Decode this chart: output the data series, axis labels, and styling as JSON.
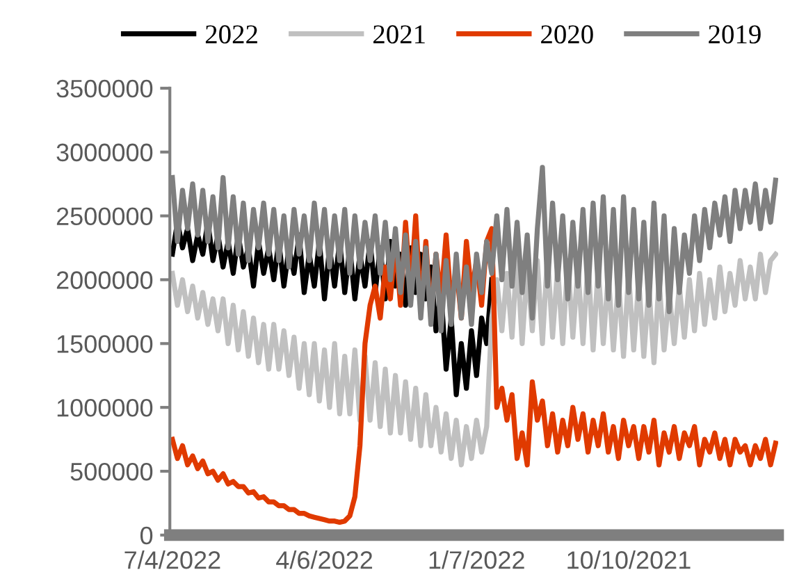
{
  "chart_data": {
    "type": "line",
    "legend": "top",
    "grid": false,
    "marker": "none",
    "line_style": "solid",
    "categories": [
      "7/4/2022",
      null,
      null,
      null,
      null,
      null,
      null,
      null,
      null,
      null,
      null,
      null,
      null,
      null,
      null,
      null,
      null,
      null,
      null,
      null,
      null,
      null,
      null,
      null,
      null,
      null,
      null,
      null,
      null,
      null,
      "4/6/2022",
      null,
      null,
      null,
      null,
      null,
      null,
      null,
      null,
      null,
      null,
      null,
      null,
      null,
      null,
      null,
      null,
      null,
      null,
      null,
      null,
      null,
      null,
      null,
      null,
      null,
      null,
      null,
      null,
      null,
      "1/7/2022",
      null,
      null,
      null,
      null,
      null,
      null,
      null,
      null,
      null,
      null,
      null,
      null,
      null,
      null,
      null,
      null,
      null,
      null,
      null,
      null,
      null,
      null,
      null,
      null,
      null,
      null,
      null,
      null,
      null,
      "10/10/2021",
      null,
      null,
      null,
      null,
      null,
      null,
      null,
      null,
      null,
      null,
      null,
      null,
      null,
      null,
      null,
      null,
      null,
      null,
      null,
      null,
      null,
      null,
      null,
      null,
      null,
      null,
      null,
      null,
      null
    ],
    "ylim": [
      0,
      3500000
    ],
    "yticks": [
      0,
      500000,
      1000000,
      1500000,
      2000000,
      2500000,
      3000000,
      3500000
    ],
    "series": [
      {
        "name": "2022",
        "color": "#000000",
        "values": [
          2200000,
          2450000,
          2250000,
          2400000,
          2150000,
          2350000,
          2200000,
          2450000,
          2150000,
          2350000,
          2100000,
          2300000,
          2050000,
          2350000,
          2100000,
          2250000,
          1950000,
          2300000,
          2050000,
          2250000,
          2000000,
          2300000,
          1950000,
          2250000,
          2050000,
          2350000,
          1900000,
          2200000,
          1950000,
          2300000,
          1850000,
          2250000,
          1950000,
          2300000,
          1900000,
          2250000,
          1850000,
          2200000,
          1950000,
          2300000,
          1900000,
          2250000,
          1850000,
          2300000,
          1950000,
          2200000,
          1800000,
          2250000,
          1900000,
          2200000,
          1850000,
          2100000,
          1600000,
          1900000,
          1300000,
          1700000,
          1100000,
          1500000,
          1150000,
          1600000,
          1250000,
          1700000,
          1500000,
          2000000,
          null,
          null,
          null,
          null,
          null,
          null,
          null,
          null,
          null,
          null,
          null,
          null,
          null,
          null,
          null,
          null,
          null,
          null,
          null,
          null,
          null,
          null,
          null,
          null,
          null,
          null,
          null,
          null,
          null,
          null,
          null,
          null,
          null,
          null,
          null,
          null,
          null,
          null,
          null,
          null,
          null,
          null,
          null,
          null,
          null,
          null,
          null,
          null,
          null,
          null,
          null,
          null,
          null,
          null,
          null,
          null
        ]
      },
      {
        "name": "2021",
        "color": "#c0c0c0",
        "values": [
          2050000,
          1800000,
          2000000,
          1750000,
          1950000,
          1700000,
          1900000,
          1650000,
          1850000,
          1600000,
          1850000,
          1500000,
          1800000,
          1450000,
          1750000,
          1400000,
          1700000,
          1350000,
          1650000,
          1300000,
          1650000,
          1300000,
          1600000,
          1250000,
          1550000,
          1150000,
          1500000,
          1100000,
          1500000,
          1050000,
          1450000,
          1000000,
          1500000,
          950000,
          1400000,
          950000,
          1450000,
          900000,
          1400000,
          900000,
          1350000,
          850000,
          1300000,
          800000,
          1250000,
          800000,
          1200000,
          750000,
          1150000,
          700000,
          1100000,
          700000,
          1000000,
          650000,
          950000,
          600000,
          900000,
          550000,
          850000,
          600000,
          900000,
          650000,
          850000,
          1700000,
          2000000,
          1600000,
          2050000,
          1550000,
          2200000,
          1500000,
          2100000,
          1600000,
          2150000,
          1500000,
          2200000,
          1550000,
          2100000,
          1500000,
          2150000,
          1550000,
          2100000,
          1500000,
          2150000,
          1450000,
          2100000,
          1500000,
          2050000,
          1450000,
          2000000,
          1400000,
          2050000,
          1450000,
          2000000,
          1400000,
          1950000,
          1350000,
          2000000,
          1450000,
          1900000,
          1500000,
          1950000,
          1550000,
          2000000,
          1600000,
          2050000,
          1650000,
          2000000,
          1700000,
          2100000,
          1750000,
          2050000,
          1800000,
          2150000,
          1850000,
          2100000,
          1850000,
          2200000,
          1900000,
          2150000,
          2200000
        ]
      },
      {
        "name": "2020",
        "color": "#e03a00",
        "values": [
          750000,
          600000,
          700000,
          550000,
          620000,
          520000,
          580000,
          480000,
          500000,
          430000,
          480000,
          400000,
          420000,
          380000,
          380000,
          330000,
          340000,
          290000,
          300000,
          260000,
          260000,
          230000,
          230000,
          200000,
          200000,
          170000,
          170000,
          150000,
          140000,
          130000,
          120000,
          110000,
          110000,
          100000,
          110000,
          150000,
          300000,
          700000,
          1500000,
          1800000,
          1950000,
          1700000,
          2100000,
          1850000,
          2300000,
          1800000,
          2450000,
          1900000,
          2500000,
          1750000,
          2300000,
          1700000,
          2200000,
          1850000,
          2350000,
          1800000,
          2100000,
          1700000,
          2300000,
          1900000,
          2150000,
          1800000,
          2300000,
          2400000,
          1000000,
          1150000,
          900000,
          1100000,
          600000,
          800000,
          550000,
          1200000,
          900000,
          1050000,
          700000,
          950000,
          650000,
          900000,
          700000,
          1000000,
          750000,
          950000,
          650000,
          900000,
          700000,
          950000,
          650000,
          850000,
          600000,
          900000,
          700000,
          850000,
          600000,
          850000,
          650000,
          900000,
          550000,
          800000,
          650000,
          850000,
          600000,
          800000,
          700000,
          850000,
          550000,
          750000,
          650000,
          800000,
          600000,
          750000,
          550000,
          750000,
          650000,
          700000,
          550000,
          700000,
          600000,
          750000,
          550000,
          720000
        ]
      },
      {
        "name": "2019",
        "color": "#7f7f7f",
        "values": [
          2800000,
          2300000,
          2700000,
          2400000,
          2750000,
          2350000,
          2700000,
          2300000,
          2650000,
          2250000,
          2800000,
          2250000,
          2650000,
          2200000,
          2600000,
          2150000,
          2550000,
          2250000,
          2600000,
          2200000,
          2550000,
          2150000,
          2500000,
          2100000,
          2550000,
          2200000,
          2500000,
          2150000,
          2600000,
          2200000,
          2550000,
          2100000,
          2500000,
          2150000,
          2550000,
          2050000,
          2500000,
          2100000,
          2450000,
          2150000,
          2500000,
          2050000,
          2450000,
          2000000,
          2400000,
          1900000,
          2350000,
          1800000,
          2300000,
          1700000,
          2250000,
          1650000,
          2200000,
          1600000,
          2150000,
          1650000,
          2200000,
          1700000,
          2100000,
          1650000,
          2200000,
          1900000,
          2300000,
          2050000,
          2500000,
          2000000,
          2550000,
          1950000,
          2450000,
          1900000,
          2350000,
          1700000,
          2400000,
          2880000,
          1950000,
          2600000,
          2000000,
          2500000,
          1850000,
          2450000,
          1950000,
          2550000,
          1900000,
          2600000,
          1950000,
          2650000,
          1850000,
          2550000,
          1800000,
          2650000,
          1900000,
          2550000,
          1850000,
          2450000,
          1800000,
          2600000,
          1850000,
          2500000,
          1750000,
          2400000,
          1900000,
          2350000,
          2050000,
          2500000,
          2150000,
          2550000,
          2250000,
          2600000,
          2350000,
          2650000,
          2300000,
          2700000,
          2400000,
          2700000,
          2450000,
          2750000,
          2400000,
          2700000,
          2450000,
          2780000
        ]
      }
    ]
  }
}
